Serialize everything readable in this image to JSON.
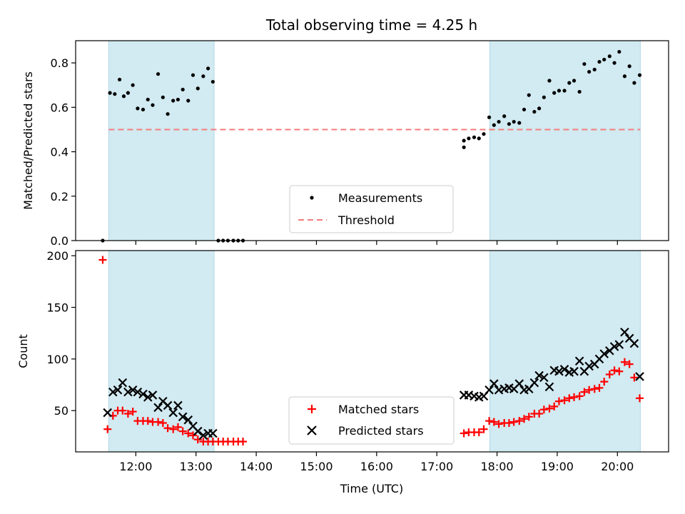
{
  "chart_data": {
    "title": "Total observing time = 4.25 h",
    "xlabel": "Time (UTC)",
    "x_unit": "hours UTC",
    "xlim": [
      11.0,
      20.85
    ],
    "xticks": [
      {
        "value": 12,
        "label": "12:00"
      },
      {
        "value": 13,
        "label": "13:00"
      },
      {
        "value": 14,
        "label": "14:00"
      },
      {
        "value": 15,
        "label": "15:00"
      },
      {
        "value": 16,
        "label": "16:00"
      },
      {
        "value": 17,
        "label": "17:00"
      },
      {
        "value": 18,
        "label": "18:00"
      },
      {
        "value": 19,
        "label": "19:00"
      },
      {
        "value": 20,
        "label": "20:00"
      }
    ],
    "shaded_intervals": [
      [
        11.55,
        13.3
      ],
      [
        17.88,
        20.38
      ]
    ],
    "shade_color": "#add8e6",
    "top_panel": {
      "type": "scatter",
      "ylabel": "Matched/Predicted stars",
      "ylim": [
        0,
        0.9
      ],
      "yticks": [
        {
          "value": 0.0,
          "label": "0.0"
        },
        {
          "value": 0.2,
          "label": "0.2"
        },
        {
          "value": 0.4,
          "label": "0.4"
        },
        {
          "value": 0.6,
          "label": "0.6"
        },
        {
          "value": 0.8,
          "label": "0.8"
        }
      ],
      "threshold": {
        "name": "Threshold",
        "value": 0.5,
        "x_range": [
          11.55,
          20.38
        ],
        "color": "#f47c7c"
      },
      "legend": {
        "position": "lower-center",
        "entries": [
          "Measurements",
          "Threshold"
        ]
      },
      "series": [
        {
          "name": "Measurements",
          "color": "#000000",
          "marker": "dot",
          "x": [
            11.45,
            11.57,
            11.65,
            11.73,
            11.8,
            11.87,
            11.95,
            12.03,
            12.12,
            12.2,
            12.28,
            12.37,
            12.45,
            12.53,
            12.62,
            12.7,
            12.78,
            12.87,
            12.95,
            13.03,
            13.12,
            13.2,
            13.28,
            13.37,
            13.45,
            13.53,
            13.62,
            13.7,
            13.78,
            17.45,
            17.45,
            17.53,
            17.62,
            17.7,
            17.78,
            17.87,
            17.95,
            18.03,
            18.12,
            18.2,
            18.28,
            18.37,
            18.45,
            18.53,
            18.62,
            18.7,
            18.78,
            18.87,
            18.95,
            19.03,
            19.12,
            19.2,
            19.28,
            19.37,
            19.45,
            19.53,
            19.62,
            19.7,
            19.78,
            19.87,
            19.95,
            20.03,
            20.12,
            20.2,
            20.28,
            20.37
          ],
          "y": [
            0.0,
            0.665,
            0.66,
            0.725,
            0.65,
            0.665,
            0.7,
            0.595,
            0.59,
            0.635,
            0.61,
            0.75,
            0.645,
            0.57,
            0.63,
            0.635,
            0.68,
            0.63,
            0.745,
            0.685,
            0.74,
            0.775,
            0.715,
            0.0,
            0.0,
            0.0,
            0.0,
            0.0,
            0.0,
            0.45,
            0.42,
            0.46,
            0.465,
            0.46,
            0.48,
            0.555,
            0.52,
            0.535,
            0.56,
            0.525,
            0.535,
            0.53,
            0.59,
            0.655,
            0.58,
            0.595,
            0.645,
            0.72,
            0.665,
            0.675,
            0.675,
            0.71,
            0.72,
            0.67,
            0.795,
            0.76,
            0.77,
            0.805,
            0.815,
            0.83,
            0.8,
            0.85,
            0.74,
            0.785,
            0.71,
            0.745
          ]
        }
      ]
    },
    "bottom_panel": {
      "type": "scatter",
      "ylabel": "Count",
      "ylim": [
        10,
        205
      ],
      "yticks": [
        {
          "value": 50,
          "label": "50"
        },
        {
          "value": 100,
          "label": "100"
        },
        {
          "value": 150,
          "label": "150"
        },
        {
          "value": 200,
          "label": "200"
        }
      ],
      "legend": {
        "position": "lower-center",
        "entries": [
          "Matched stars",
          "Predicted stars"
        ]
      },
      "series": [
        {
          "name": "Matched stars",
          "color": "#ff0000",
          "marker": "plus",
          "x": [
            11.45,
            11.53,
            11.62,
            11.7,
            11.78,
            11.87,
            11.95,
            12.03,
            12.12,
            12.2,
            12.28,
            12.37,
            12.45,
            12.53,
            12.62,
            12.7,
            12.78,
            12.87,
            12.95,
            13.03,
            13.12,
            13.2,
            13.28,
            13.37,
            13.45,
            13.53,
            13.62,
            13.7,
            13.78,
            17.45,
            17.53,
            17.62,
            17.7,
            17.78,
            17.87,
            17.95,
            18.03,
            18.12,
            18.2,
            18.28,
            18.37,
            18.45,
            18.53,
            18.62,
            18.7,
            18.78,
            18.87,
            18.95,
            19.03,
            19.12,
            19.2,
            19.28,
            19.37,
            19.45,
            19.53,
            19.62,
            19.7,
            19.78,
            19.87,
            19.95,
            20.03,
            20.12,
            20.2,
            20.28,
            20.37
          ],
          "y": [
            196,
            32,
            45,
            50,
            50,
            47,
            49,
            40,
            40,
            40,
            39,
            39,
            38,
            33,
            32,
            34,
            30,
            28,
            26,
            22,
            20,
            20,
            20,
            20,
            20,
            20,
            20,
            20,
            20,
            28,
            29,
            29,
            29,
            32,
            40,
            39,
            37,
            38,
            38,
            39,
            40,
            42,
            44,
            47,
            47,
            51,
            52,
            54,
            59,
            60,
            62,
            63,
            64,
            68,
            70,
            71,
            72,
            78,
            85,
            89,
            88,
            97,
            95,
            82,
            62
          ]
        },
        {
          "name": "Predicted stars",
          "color": "#000000",
          "marker": "x",
          "x": [
            11.53,
            11.62,
            11.7,
            11.78,
            11.87,
            11.95,
            12.03,
            12.12,
            12.2,
            12.28,
            12.37,
            12.45,
            12.53,
            12.62,
            12.7,
            12.78,
            12.87,
            12.95,
            13.03,
            13.12,
            13.2,
            13.28,
            17.45,
            17.53,
            17.62,
            17.7,
            17.78,
            17.87,
            17.95,
            18.03,
            18.12,
            18.2,
            18.28,
            18.37,
            18.45,
            18.53,
            18.62,
            18.7,
            18.78,
            18.87,
            18.95,
            19.03,
            19.12,
            19.2,
            19.28,
            19.37,
            19.45,
            19.53,
            19.62,
            19.7,
            19.78,
            19.87,
            19.95,
            20.03,
            20.12,
            20.2,
            20.28,
            20.37
          ],
          "y": [
            48,
            68,
            70,
            77,
            68,
            70,
            68,
            66,
            63,
            65,
            53,
            59,
            55,
            48,
            55,
            44,
            41,
            35,
            30,
            26,
            28,
            28,
            65,
            65,
            64,
            63,
            64,
            70,
            76,
            70,
            71,
            72,
            71,
            76,
            70,
            71,
            77,
            84,
            82,
            73,
            89,
            88,
            90,
            87,
            88,
            98,
            88,
            93,
            95,
            100,
            105,
            108,
            112,
            114,
            126,
            120,
            115,
            83
          ]
        }
      ]
    }
  }
}
